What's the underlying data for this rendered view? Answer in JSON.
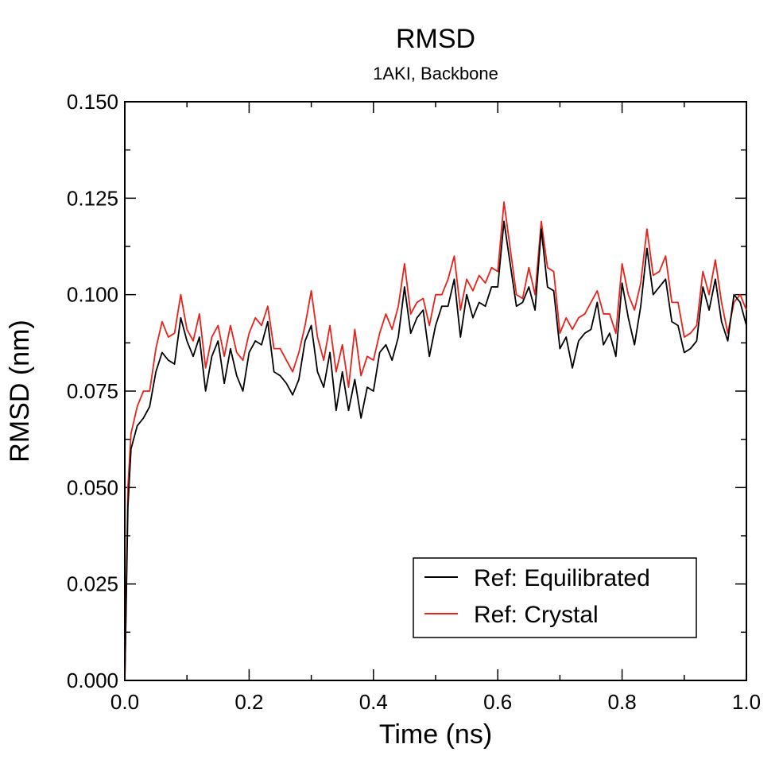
{
  "chart_data": {
    "type": "line",
    "title": "RMSD",
    "subtitle": "1AKI, Backbone",
    "xlabel": "Time (ns)",
    "ylabel": "RMSD (nm)",
    "xlim": [
      0.0,
      1.0
    ],
    "ylim": [
      0.0,
      0.15
    ],
    "xticks": [
      "0.0",
      "0.2",
      "0.4",
      "0.6",
      "0.8",
      "1.0"
    ],
    "yticks": [
      "0.000",
      "0.025",
      "0.050",
      "0.075",
      "0.100",
      "0.125",
      "0.150"
    ],
    "grid": false,
    "legend_position": "bottom-right",
    "x": [
      0.0,
      0.005,
      0.01,
      0.02,
      0.03,
      0.04,
      0.05,
      0.06,
      0.07,
      0.08,
      0.09,
      0.1,
      0.11,
      0.12,
      0.13,
      0.14,
      0.15,
      0.16,
      0.17,
      0.18,
      0.19,
      0.2,
      0.21,
      0.22,
      0.23,
      0.24,
      0.25,
      0.26,
      0.27,
      0.28,
      0.29,
      0.3,
      0.31,
      0.32,
      0.33,
      0.34,
      0.35,
      0.36,
      0.37,
      0.38,
      0.39,
      0.4,
      0.41,
      0.42,
      0.43,
      0.44,
      0.45,
      0.46,
      0.47,
      0.48,
      0.49,
      0.5,
      0.51,
      0.52,
      0.53,
      0.54,
      0.55,
      0.56,
      0.57,
      0.58,
      0.59,
      0.6,
      0.61,
      0.62,
      0.63,
      0.64,
      0.65,
      0.66,
      0.67,
      0.68,
      0.69,
      0.7,
      0.71,
      0.72,
      0.73,
      0.74,
      0.75,
      0.76,
      0.77,
      0.78,
      0.79,
      0.8,
      0.81,
      0.82,
      0.83,
      0.84,
      0.85,
      0.86,
      0.87,
      0.88,
      0.89,
      0.9,
      0.91,
      0.92,
      0.93,
      0.94,
      0.95,
      0.96,
      0.97,
      0.98,
      0.99,
      1.0
    ],
    "series": [
      {
        "name": "Ref: Equilibrated",
        "color": "#000000",
        "values": [
          0.0,
          0.045,
          0.06,
          0.066,
          0.068,
          0.071,
          0.08,
          0.085,
          0.083,
          0.082,
          0.094,
          0.088,
          0.084,
          0.089,
          0.075,
          0.084,
          0.088,
          0.077,
          0.086,
          0.079,
          0.075,
          0.085,
          0.088,
          0.087,
          0.093,
          0.08,
          0.079,
          0.077,
          0.074,
          0.078,
          0.088,
          0.092,
          0.08,
          0.076,
          0.085,
          0.07,
          0.08,
          0.07,
          0.078,
          0.068,
          0.076,
          0.075,
          0.085,
          0.087,
          0.083,
          0.089,
          0.102,
          0.09,
          0.094,
          0.096,
          0.084,
          0.092,
          0.097,
          0.097,
          0.104,
          0.089,
          0.1,
          0.094,
          0.098,
          0.097,
          0.102,
          0.102,
          0.119,
          0.108,
          0.097,
          0.098,
          0.102,
          0.096,
          0.117,
          0.102,
          0.101,
          0.086,
          0.089,
          0.081,
          0.088,
          0.09,
          0.091,
          0.098,
          0.087,
          0.09,
          0.084,
          0.103,
          0.094,
          0.087,
          0.097,
          0.112,
          0.1,
          0.102,
          0.104,
          0.093,
          0.092,
          0.085,
          0.086,
          0.088,
          0.102,
          0.096,
          0.104,
          0.093,
          0.088,
          0.1,
          0.098,
          0.092
        ]
      },
      {
        "name": "Ref: Crystal",
        "color": "#e8221b",
        "values": [
          0.0,
          0.05,
          0.064,
          0.071,
          0.075,
          0.075,
          0.086,
          0.093,
          0.089,
          0.09,
          0.1,
          0.091,
          0.088,
          0.095,
          0.081,
          0.089,
          0.092,
          0.084,
          0.092,
          0.085,
          0.083,
          0.09,
          0.094,
          0.092,
          0.097,
          0.086,
          0.086,
          0.083,
          0.08,
          0.085,
          0.092,
          0.101,
          0.089,
          0.083,
          0.092,
          0.08,
          0.087,
          0.076,
          0.091,
          0.079,
          0.084,
          0.083,
          0.09,
          0.095,
          0.091,
          0.097,
          0.108,
          0.095,
          0.098,
          0.099,
          0.092,
          0.1,
          0.1,
          0.104,
          0.11,
          0.096,
          0.104,
          0.101,
          0.105,
          0.103,
          0.107,
          0.106,
          0.124,
          0.112,
          0.1,
          0.099,
          0.107,
          0.1,
          0.119,
          0.107,
          0.106,
          0.09,
          0.094,
          0.091,
          0.094,
          0.095,
          0.098,
          0.101,
          0.095,
          0.095,
          0.09,
          0.108,
          0.1,
          0.096,
          0.103,
          0.117,
          0.105,
          0.106,
          0.11,
          0.098,
          0.098,
          0.089,
          0.09,
          0.092,
          0.106,
          0.1,
          0.109,
          0.098,
          0.09,
          0.098,
          0.1,
          0.096
        ]
      }
    ]
  }
}
